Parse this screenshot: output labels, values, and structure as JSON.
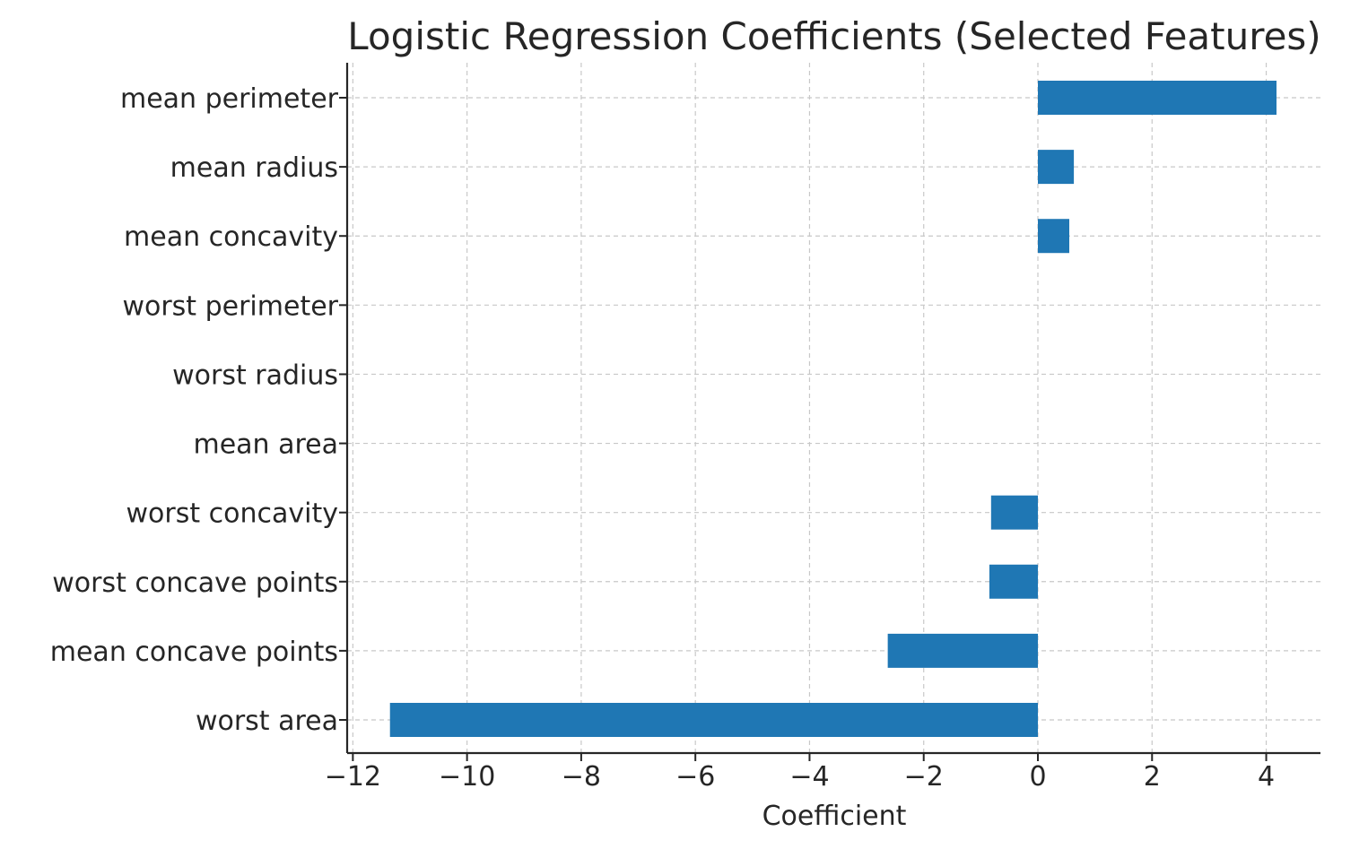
{
  "chart_data": {
    "type": "bar",
    "orientation": "horizontal",
    "title": "Logistic Regression Coefficients (Selected Features)",
    "xlabel": "Coefficient",
    "ylabel": "",
    "categories": [
      "mean perimeter",
      "mean radius",
      "mean concavity",
      "worst perimeter",
      "worst radius",
      "mean area",
      "worst concavity",
      "worst concave points",
      "mean concave points",
      "worst area"
    ],
    "values": [
      4.18,
      0.63,
      0.55,
      0.0,
      0.0,
      0.0,
      -0.82,
      -0.85,
      -2.63,
      -11.35
    ],
    "xlim": [
      -12.1,
      4.95
    ],
    "xticks": [
      -12,
      -10,
      -8,
      -6,
      -4,
      -2,
      0,
      2,
      4
    ],
    "xtick_labels": [
      "−12",
      "−10",
      "−8",
      "−6",
      "−4",
      "−2",
      "0",
      "2",
      "4"
    ],
    "grid": true,
    "grid_style": "dashed",
    "legend": "none",
    "colors": {
      "bar": "#1f77b4",
      "grid": "#c8c8c8",
      "axis": "#262626",
      "text": "#262626"
    }
  }
}
